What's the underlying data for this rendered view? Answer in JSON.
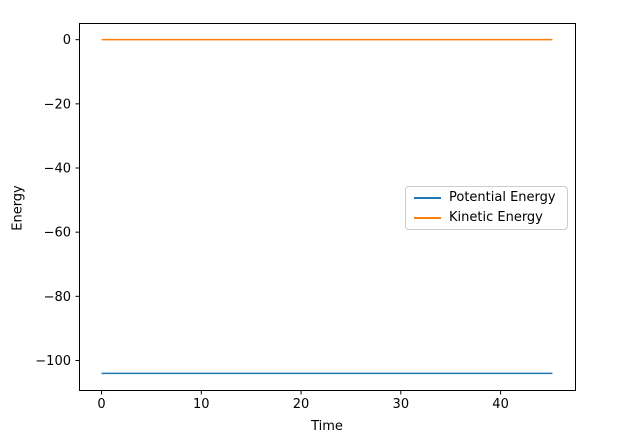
{
  "figure": {
    "background": "#ffffff",
    "spine_color": "#000000",
    "text_color": "#000000"
  },
  "chart_data": {
    "type": "line",
    "title": "",
    "xlabel": "Time",
    "ylabel": "Energy",
    "xlim": [
      -2.26,
      47.46
    ],
    "ylim": [
      -109.2,
      5.2
    ],
    "xticks": [
      0,
      10,
      20,
      30,
      40
    ],
    "xtick_labels": [
      "0",
      "10",
      "20",
      "30",
      "40"
    ],
    "yticks": [
      0,
      -20,
      -40,
      -60,
      -80,
      -100
    ],
    "ytick_labels": [
      "0",
      "−20",
      "−40",
      "−60",
      "−80",
      "−100"
    ],
    "grid": false,
    "legend": {
      "position": "center right",
      "border_color": "#cccccc",
      "background": "#ffffff"
    },
    "series": [
      {
        "name": "Potential Energy",
        "color": "#1f77b4",
        "x": [
          0,
          45.2
        ],
        "y": [
          -104,
          -104
        ]
      },
      {
        "name": "Kinetic Energy",
        "color": "#ff7f0e",
        "x": [
          0,
          45.2
        ],
        "y": [
          0,
          0
        ]
      }
    ]
  }
}
